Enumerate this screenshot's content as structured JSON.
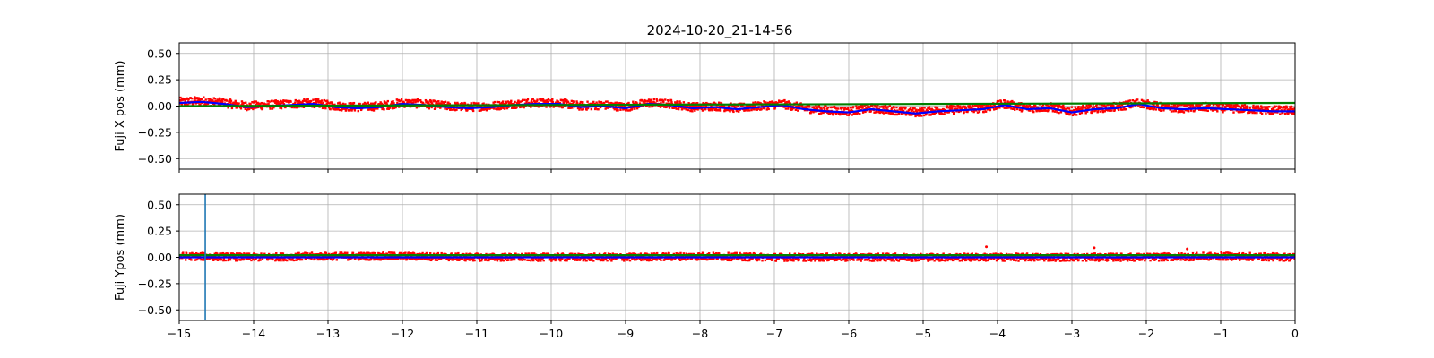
{
  "chart_data": {
    "title": "2024-10-20_21-14-56",
    "type": "scatter",
    "x_ticks": [
      -15,
      -14,
      -13,
      -12,
      -11,
      -10,
      -9,
      -8,
      -7,
      -6,
      -5,
      -4,
      -3,
      -2,
      -1,
      0
    ],
    "x_tick_labels": [
      "−15",
      "−14",
      "−13",
      "−12",
      "−11",
      "−10",
      "−9",
      "−8",
      "−7",
      "−6",
      "−5",
      "−4",
      "−3",
      "−2",
      "−1",
      "0"
    ],
    "xlim": [
      -15,
      0
    ],
    "grid": true,
    "colors": {
      "points": "#ff0000",
      "smoothed": "#0000ff",
      "reference": "#008000",
      "marker_line": "#1f77b4"
    },
    "panels": [
      {
        "ylabel": "Fuji X pos (mm)",
        "ylim": [
          -0.6,
          0.6
        ],
        "y_ticks": [
          0.5,
          0.25,
          0.0,
          -0.25,
          -0.5
        ],
        "y_tick_labels": [
          "0.50",
          "0.25",
          "0.00",
          "−0.25",
          "−0.50"
        ],
        "series": [
          {
            "kind": "scatter",
            "color": "#ff0000",
            "x": [
              -15,
              -14.7,
              -14.4,
              -14.1,
              -13.8,
              -13.5,
              -13.2,
              -12.9,
              -12.6,
              -12.3,
              -12,
              -11.7,
              -11.4,
              -11.1,
              -10.8,
              -10.5,
              -10.2,
              -9.9,
              -9.6,
              -9.3,
              -9,
              -8.7,
              -8.4,
              -8.1,
              -7.8,
              -7.5,
              -7.2,
              -6.9,
              -6.6,
              -6.3,
              -6,
              -5.7,
              -5.4,
              -5.1,
              -4.8,
              -4.5,
              -4.2,
              -3.9,
              -3.6,
              -3.3,
              -3,
              -2.7,
              -2.4,
              -2.1,
              -1.8,
              -1.5,
              -1.2,
              -0.9,
              -0.6,
              -0.3,
              0
            ],
            "y": [
              0.04,
              0.05,
              0.03,
              0.0,
              0.01,
              0.02,
              0.03,
              0.0,
              -0.01,
              0.0,
              0.03,
              0.02,
              0.0,
              -0.01,
              0.0,
              0.02,
              0.03,
              0.03,
              0.0,
              0.01,
              -0.01,
              0.03,
              0.02,
              -0.01,
              0.0,
              -0.02,
              0.0,
              0.02,
              -0.02,
              -0.04,
              -0.05,
              -0.02,
              -0.04,
              -0.06,
              -0.04,
              -0.03,
              -0.02,
              0.02,
              -0.02,
              -0.01,
              -0.05,
              -0.02,
              -0.01,
              0.03,
              -0.01,
              -0.02,
              -0.01,
              -0.02,
              -0.03,
              -0.04,
              -0.04
            ],
            "y_spread": 0.04
          },
          {
            "kind": "line",
            "color": "#0000ff",
            "x": [
              -15,
              -14.7,
              -14.4,
              -14.1,
              -13.8,
              -13.5,
              -13.2,
              -12.9,
              -12.6,
              -12.3,
              -12,
              -11.7,
              -11.4,
              -11.1,
              -10.8,
              -10.5,
              -10.2,
              -9.9,
              -9.6,
              -9.3,
              -9,
              -8.7,
              -8.4,
              -8.1,
              -7.8,
              -7.5,
              -7.2,
              -6.9,
              -6.6,
              -6.3,
              -6,
              -5.7,
              -5.4,
              -5.1,
              -4.8,
              -4.5,
              -4.2,
              -3.9,
              -3.6,
              -3.3,
              -3,
              -2.7,
              -2.4,
              -2.1,
              -1.8,
              -1.5,
              -1.2,
              -0.9,
              -0.6,
              -0.3,
              0
            ],
            "y": [
              0.03,
              0.04,
              0.02,
              -0.01,
              0.0,
              0.01,
              0.02,
              -0.01,
              -0.02,
              -0.01,
              0.02,
              0.01,
              -0.01,
              -0.02,
              -0.01,
              0.01,
              0.02,
              0.02,
              -0.01,
              0.0,
              -0.02,
              0.02,
              0.01,
              -0.02,
              -0.01,
              -0.03,
              -0.01,
              0.01,
              -0.03,
              -0.05,
              -0.06,
              -0.03,
              -0.05,
              -0.07,
              -0.05,
              -0.04,
              -0.03,
              0.01,
              -0.03,
              -0.02,
              -0.06,
              -0.03,
              -0.02,
              0.02,
              -0.02,
              -0.03,
              -0.02,
              -0.03,
              -0.04,
              -0.05,
              -0.05
            ]
          },
          {
            "kind": "line",
            "color": "#008000",
            "x": [
              -15,
              -10,
              -5,
              0
            ],
            "y": [
              0.0,
              0.01,
              0.02,
              0.03
            ]
          }
        ],
        "vlines": []
      },
      {
        "ylabel": "Fuji Ypos (mm)",
        "ylim": [
          -0.6,
          0.6
        ],
        "y_ticks": [
          0.5,
          0.25,
          0.0,
          -0.25,
          -0.5
        ],
        "y_tick_labels": [
          "0.50",
          "0.25",
          "0.00",
          "−0.25",
          "−0.50"
        ],
        "series": [
          {
            "kind": "scatter",
            "color": "#ff0000",
            "x": [
              -15,
              -14,
              -13,
              -12,
              -11,
              -10,
              -9,
              -8,
              -7,
              -6,
              -5,
              -4,
              -3,
              -2,
              -1,
              0
            ],
            "y": [
              0.01,
              0.0,
              0.01,
              0.01,
              0.0,
              0.0,
              0.0,
              0.01,
              0.0,
              0.0,
              0.0,
              0.0,
              0.0,
              0.0,
              0.01,
              0.0
            ],
            "y_spread": 0.035
          },
          {
            "kind": "line",
            "color": "#0000ff",
            "x": [
              -15,
              0
            ],
            "y": [
              0.0,
              0.0
            ]
          },
          {
            "kind": "line",
            "color": "#008000",
            "x": [
              -15,
              0
            ],
            "y": [
              0.02,
              0.02
            ]
          },
          {
            "kind": "outliers",
            "color": "#ff0000",
            "x": [
              -4.15,
              -2.7,
              -1.45
            ],
            "y": [
              0.1,
              0.09,
              0.08
            ]
          }
        ],
        "vlines": [
          -14.65
        ]
      }
    ]
  }
}
